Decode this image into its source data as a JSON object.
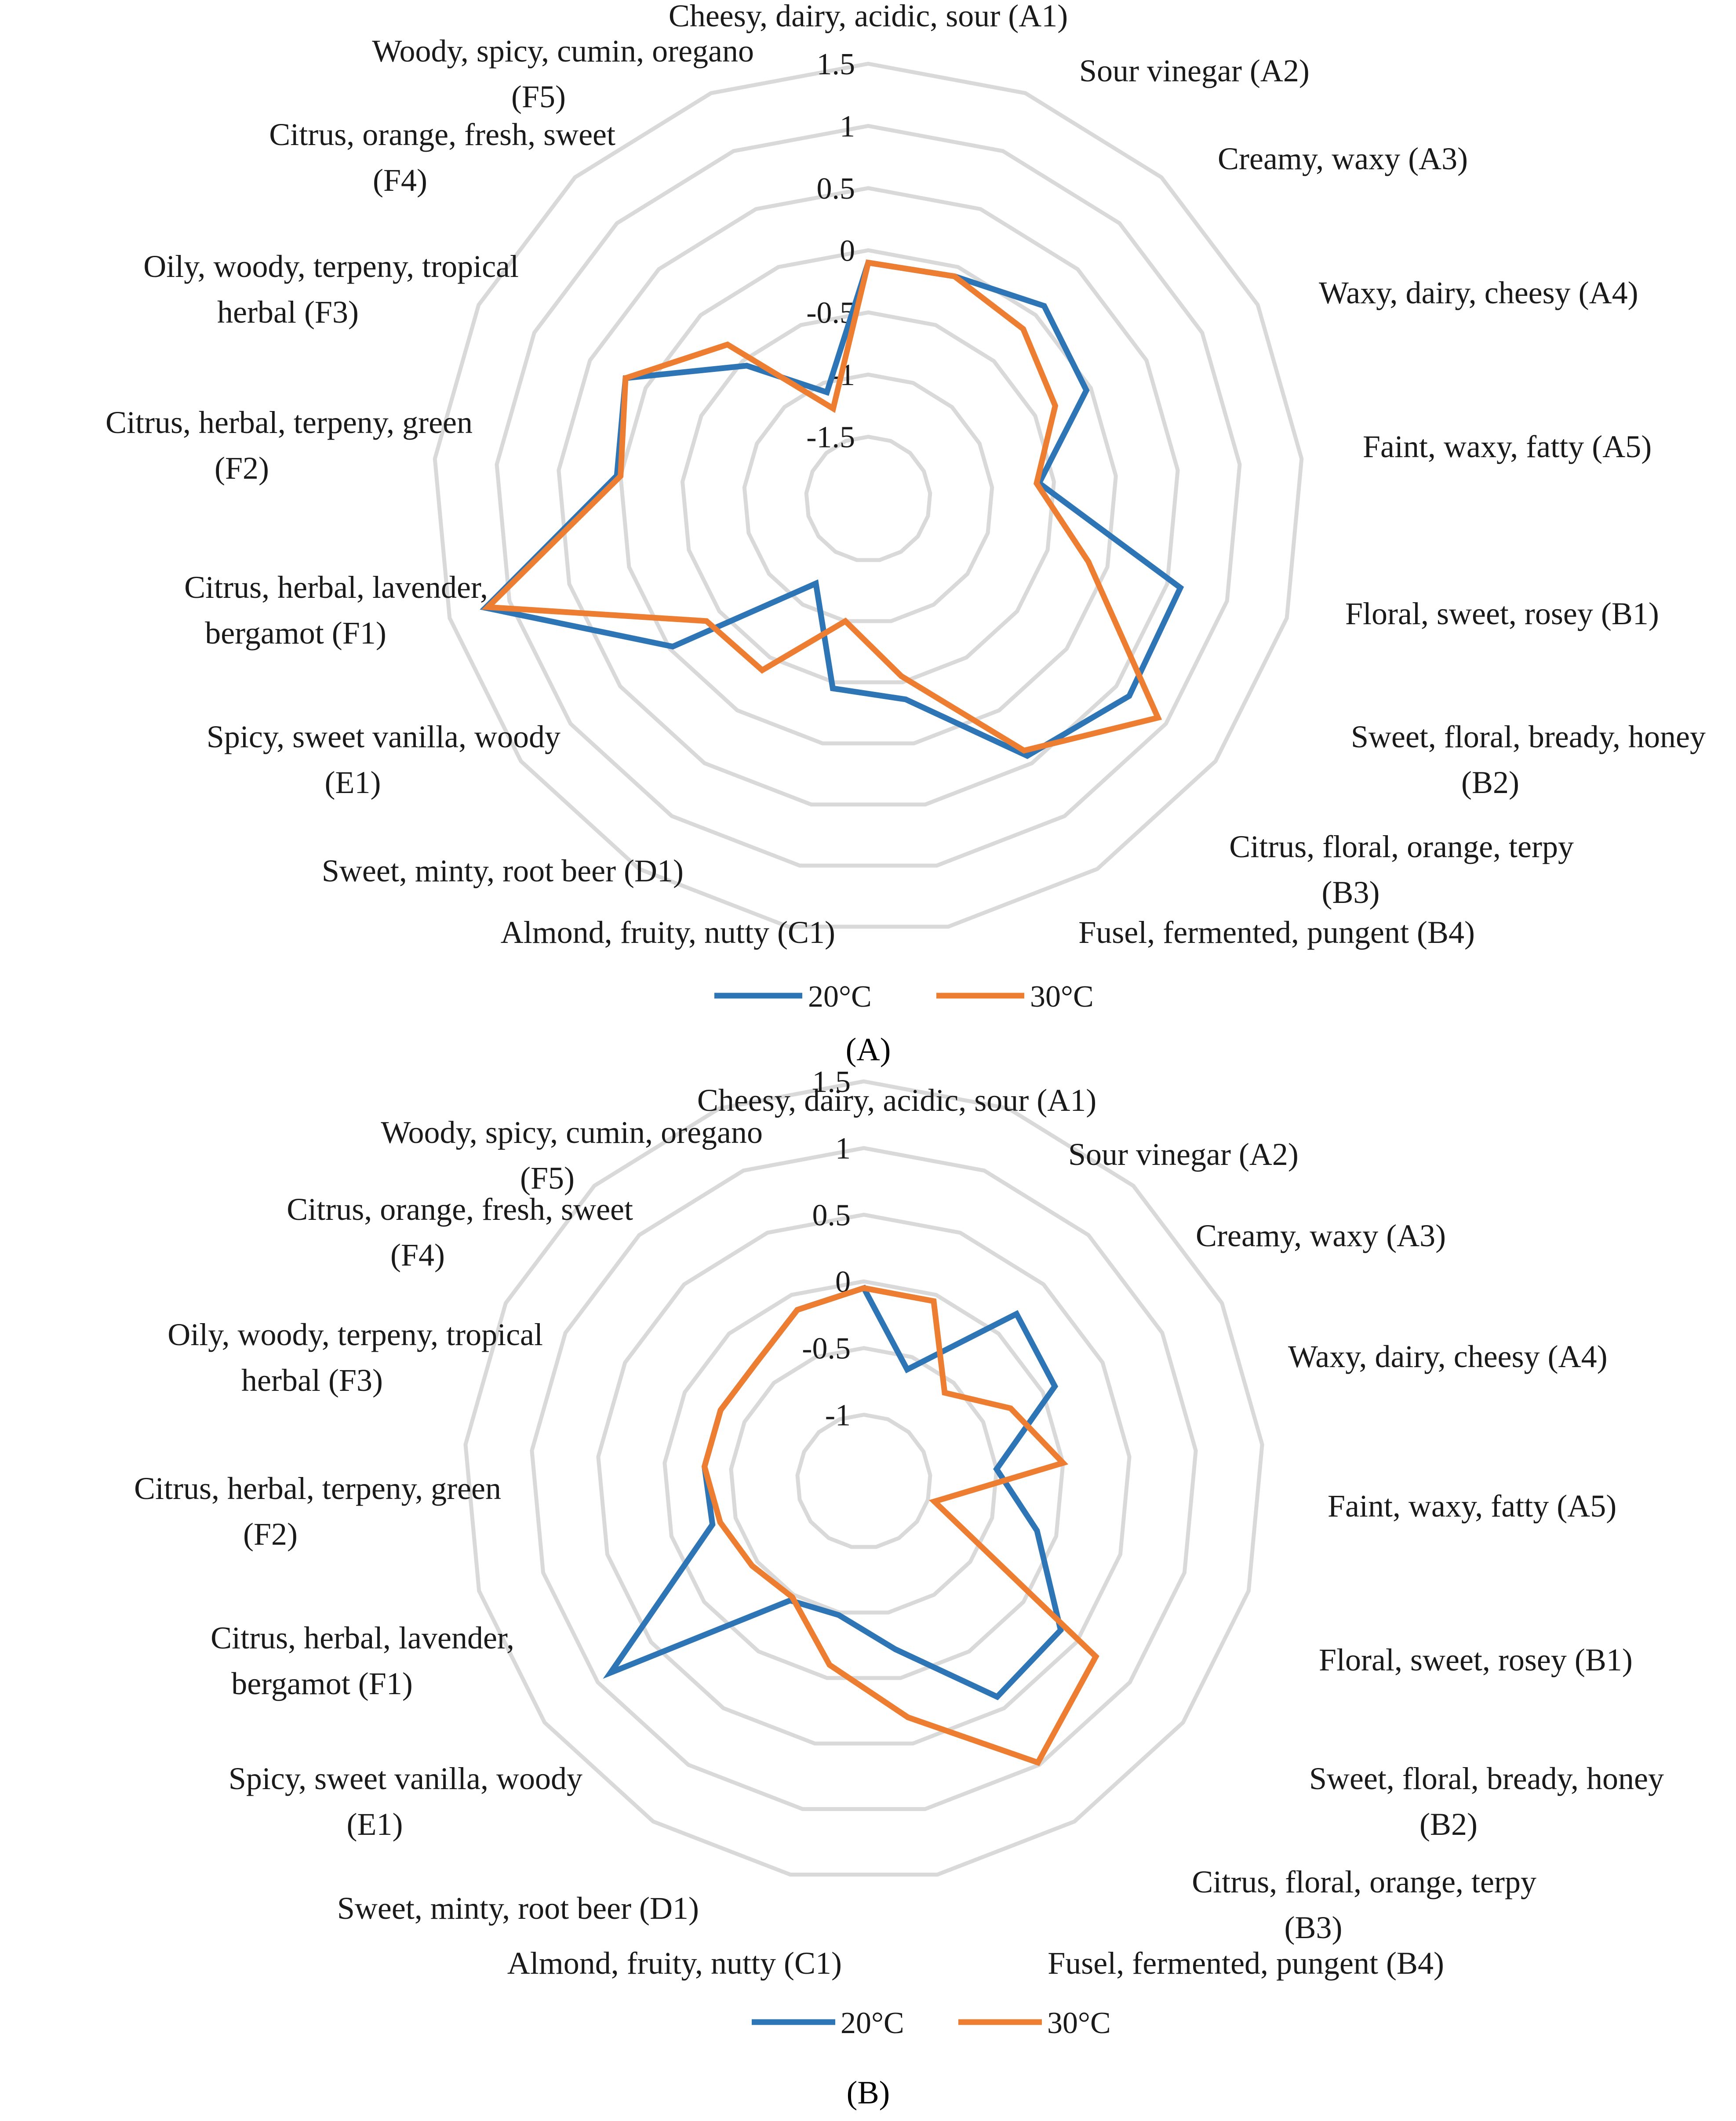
{
  "colors": {
    "s20": "#2e75b6",
    "s30": "#ed7d31",
    "grid": "#d9d9d9"
  },
  "legend": [
    "20°C",
    "30°C"
  ],
  "chart_data": [
    {
      "type": "radar",
      "panel": "A",
      "panel_label": "(A)",
      "axes": [
        [
          "Cheesy, dairy, acidic, sour (A1)"
        ],
        [
          "Sour vinegar (A2)"
        ],
        [
          "Creamy, waxy (A3)"
        ],
        [
          "Waxy, dairy, cheesy (A4)"
        ],
        [
          "Faint, waxy, fatty (A5)"
        ],
        [
          "Floral, sweet, rosey (B1)"
        ],
        [
          "Sweet, floral, bready, honey",
          "(B2)"
        ],
        [
          "Citrus, floral, orange, terpy",
          "(B3)"
        ],
        [
          "Fusel, fermented, pungent (B4)"
        ],
        [
          "Almond, fruity, nutty (C1)"
        ],
        [
          "Sweet, minty, root beer (D1)"
        ],
        [
          "Spicy, sweet vanilla, woody",
          "(E1)"
        ],
        [
          "Citrus, herbal, lavender,",
          "bergamot (F1)"
        ],
        [
          "Citrus, herbal, terpeny, green",
          "(F2)"
        ],
        [
          "Oily, woody, terpeny, tropical",
          "herbal (F3)"
        ],
        [
          "Citrus, orange, fresh, sweet",
          "(F4)"
        ],
        [
          "Woody, spicy, cumin, oregano",
          "(F5)"
        ]
      ],
      "rmin": -2,
      "rmax": 1.5,
      "ticks": [
        -1.5,
        -1,
        -0.5,
        0,
        0.5,
        1,
        1.5
      ],
      "tick_labels": [
        "-1.5",
        "-1",
        "-0.5",
        "0",
        "0.5",
        "1",
        "1.5"
      ],
      "series": [
        {
          "name": "20°C",
          "values": [
            -0.1,
            -0.08,
            0.1,
            -0.04,
            -0.62,
            0.61,
            0.63,
            0.43,
            -0.36,
            -0.45,
            -1.2,
            -0.03,
            1.2,
            0.03,
            0.18,
            -0.55,
            -1.08
          ]
        },
        {
          "name": "30°C",
          "values": [
            -0.1,
            -0.08,
            -0.15,
            -0.32,
            -0.64,
            -0.16,
            0.92,
            0.38,
            -0.55,
            -1.0,
            -0.38,
            -0.37,
            1.18,
            0.0,
            0.18,
            -0.32,
            -1.22
          ]
        }
      ]
    },
    {
      "type": "radar",
      "panel": "B",
      "panel_label": "(B)",
      "axes": [
        [
          "Cheesy, dairy, acidic, sour (A1)"
        ],
        [
          "Sour vinegar (A2)"
        ],
        [
          "Creamy, waxy (A3)"
        ],
        [
          "Waxy, dairy, cheesy (A4)"
        ],
        [
          "Faint, waxy, fatty (A5)"
        ],
        [
          "Floral, sweet, rosey (B1)"
        ],
        [
          "Sweet, floral, bready, honey",
          "(B2)"
        ],
        [
          "Citrus, floral, orange, terpy",
          "(B3)"
        ],
        [
          "Fusel, fermented, pungent (B4)"
        ],
        [
          "Almond, fruity, nutty (C1)"
        ],
        [
          "Sweet, minty, root beer (D1)"
        ],
        [
          "Spicy, sweet vanilla, woody",
          "(E1)"
        ],
        [
          "Citrus, herbal, lavender,",
          "bergamot (F1)"
        ],
        [
          "Citrus, herbal, terpeny, green",
          "(F2)"
        ],
        [
          "Oily, woody, terpeny, tropical",
          "herbal (F3)"
        ],
        [
          "Citrus, orange, fresh, sweet",
          "(F4)"
        ],
        [
          "Woody, spicy, cumin, oregano",
          "(F5)"
        ]
      ],
      "rmin": -1.5,
      "rmax": 1.5,
      "ticks": [
        -1,
        -0.5,
        0,
        0.5,
        1,
        1.5
      ],
      "tick_labels": [
        "-1",
        "-0.5",
        "0",
        "0.5",
        "1",
        "1.5"
      ],
      "series": [
        {
          "name": "20°C",
          "values": [
            -0.05,
            -0.6,
            0.2,
            0.1,
            -0.5,
            -0.15,
            0.35,
            0.4,
            -0.22,
            -0.48,
            -0.45,
            0.88,
            -0.32,
            -0.3,
            -0.3,
            -0.3,
            -0.12
          ]
        },
        {
          "name": "30°C",
          "values": [
            -0.05,
            -0.05,
            -0.6,
            -0.27,
            0.0,
            -0.95,
            0.68,
            0.98,
            0.3,
            -0.1,
            -0.48,
            -0.45,
            -0.38,
            -0.3,
            -0.3,
            -0.3,
            -0.12
          ]
        }
      ]
    }
  ]
}
